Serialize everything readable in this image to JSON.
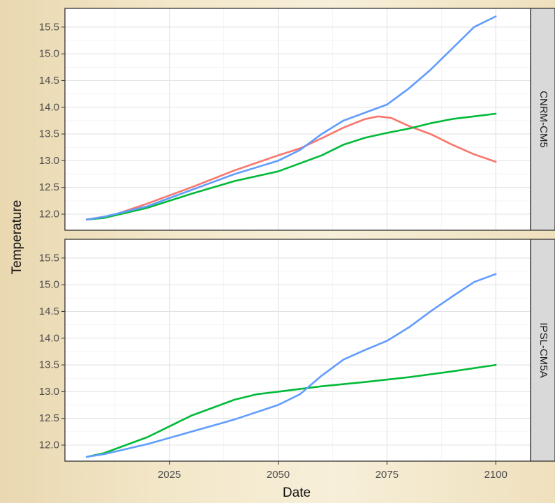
{
  "chart_data": {
    "type": "line",
    "xlabel": "Date",
    "ylabel": "Temperature",
    "x_ticks": [
      2025,
      2050,
      2075,
      2100
    ],
    "y_ticks": [
      12.0,
      12.5,
      13.0,
      13.5,
      14.0,
      14.5,
      15.0,
      15.5
    ],
    "y_tick_labels": [
      "12.0",
      "12.5",
      "13.0",
      "13.5",
      "14.0",
      "14.5",
      "15.0",
      "15.5"
    ],
    "xlim": [
      2001,
      2108
    ],
    "ylim": [
      11.7,
      15.85
    ],
    "grid": true,
    "series_colors": [
      "#f8766d",
      "#00ba38",
      "#619cff"
    ],
    "panels": [
      {
        "strip_label": "CNRM-CM5",
        "series": [
          {
            "color": "#f8766d",
            "x": [
              2006,
              2012,
              2020,
              2030,
              2040,
              2050,
              2055,
              2060,
              2065,
              2070,
              2073,
              2076,
              2080,
              2085,
              2090,
              2095,
              2100
            ],
            "y": [
              11.9,
              11.98,
              12.2,
              12.5,
              12.82,
              13.1,
              13.23,
              13.42,
              13.62,
              13.78,
              13.83,
              13.8,
              13.65,
              13.5,
              13.3,
              13.12,
              12.98
            ]
          },
          {
            "color": "#00ba38",
            "x": [
              2006,
              2010,
              2020,
              2030,
              2040,
              2050,
              2055,
              2060,
              2065,
              2070,
              2075,
              2080,
              2085,
              2090,
              2095,
              2100
            ],
            "y": [
              11.9,
              11.93,
              12.12,
              12.38,
              12.62,
              12.8,
              12.95,
              13.1,
              13.3,
              13.43,
              13.52,
              13.6,
              13.7,
              13.78,
              13.83,
              13.88
            ]
          },
          {
            "color": "#619cff",
            "x": [
              2006,
              2010,
              2020,
              2030,
              2040,
              2050,
              2055,
              2060,
              2065,
              2070,
              2075,
              2080,
              2085,
              2090,
              2095,
              2100
            ],
            "y": [
              11.9,
              11.95,
              12.15,
              12.45,
              12.75,
              13.0,
              13.2,
              13.5,
              13.75,
              13.9,
              14.05,
              14.35,
              14.7,
              15.1,
              15.5,
              15.7
            ]
          }
        ]
      },
      {
        "strip_label": "IPSL-CM5A",
        "series": [
          {
            "color": "#00ba38",
            "x": [
              2006,
              2010,
              2020,
              2030,
              2040,
              2045,
              2050,
              2060,
              2070,
              2080,
              2090,
              2100
            ],
            "y": [
              11.78,
              11.85,
              12.15,
              12.55,
              12.85,
              12.95,
              13.0,
              13.1,
              13.18,
              13.27,
              13.38,
              13.5
            ]
          },
          {
            "color": "#619cff",
            "x": [
              2006,
              2010,
              2020,
              2030,
              2040,
              2050,
              2055,
              2060,
              2065,
              2070,
              2075,
              2080,
              2085,
              2090,
              2095,
              2100
            ],
            "y": [
              11.78,
              11.83,
              12.02,
              12.25,
              12.48,
              12.75,
              12.95,
              13.3,
              13.6,
              13.78,
              13.95,
              14.2,
              14.5,
              14.78,
              15.05,
              15.2
            ]
          }
        ]
      }
    ]
  }
}
